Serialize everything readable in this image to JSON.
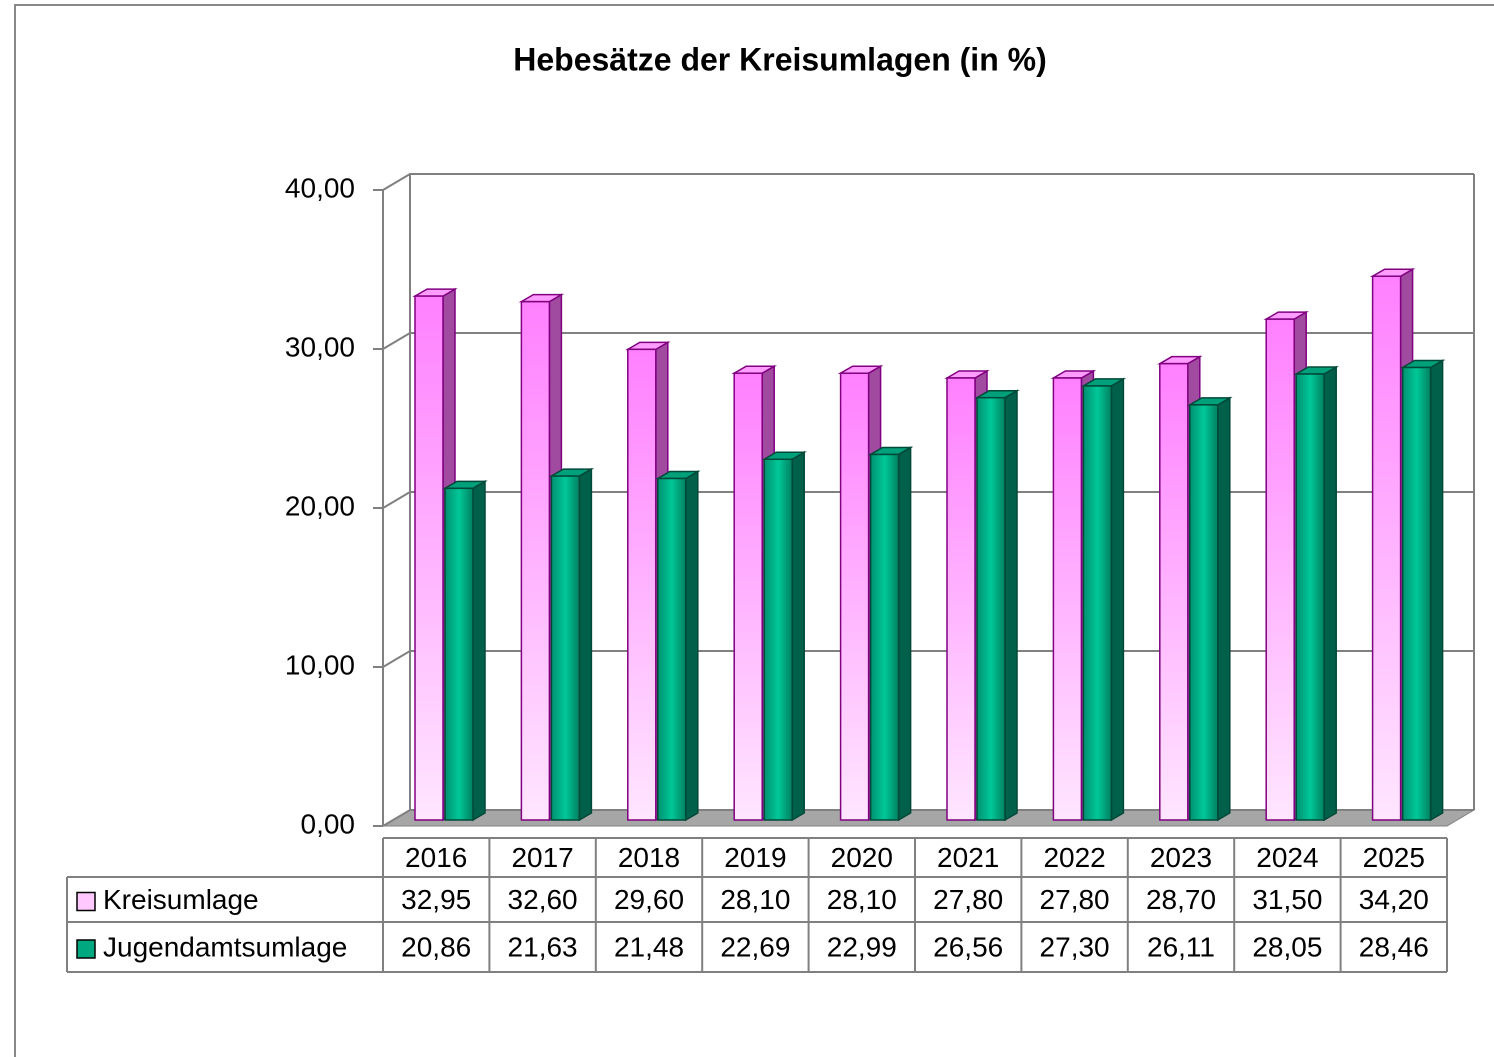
{
  "chart_data": {
    "type": "bar3d",
    "title": "Hebesätze der Kreisumlagen (in %)",
    "categories": [
      "2016",
      "2017",
      "2018",
      "2019",
      "2020",
      "2021",
      "2022",
      "2023",
      "2024",
      "2025"
    ],
    "series": [
      {
        "name": "Kreisumlage",
        "color": "#ff80ff",
        "values": [
          32.95,
          32.6,
          29.6,
          28.1,
          28.1,
          27.8,
          27.8,
          28.7,
          31.5,
          34.2
        ],
        "value_labels": [
          "32,95",
          "32,60",
          "29,60",
          "28,10",
          "28,10",
          "27,80",
          "27,80",
          "28,70",
          "31,50",
          "34,20"
        ]
      },
      {
        "name": "Jugendamtsumlage",
        "color": "#00a880",
        "values": [
          20.86,
          21.63,
          21.48,
          22.69,
          22.99,
          26.56,
          27.3,
          26.11,
          28.05,
          28.46
        ],
        "value_labels": [
          "20,86",
          "21,63",
          "21,48",
          "22,69",
          "22,99",
          "26,56",
          "27,30",
          "26,11",
          "28,05",
          "28,46"
        ]
      }
    ],
    "ylim": [
      0,
      40
    ],
    "yticks": [
      {
        "value": 0,
        "label": "0,00"
      },
      {
        "value": 10,
        "label": "10,00"
      },
      {
        "value": 20,
        "label": "20,00"
      },
      {
        "value": 30,
        "label": "30,00"
      },
      {
        "value": 40,
        "label": "40,00"
      }
    ],
    "grid": true
  }
}
